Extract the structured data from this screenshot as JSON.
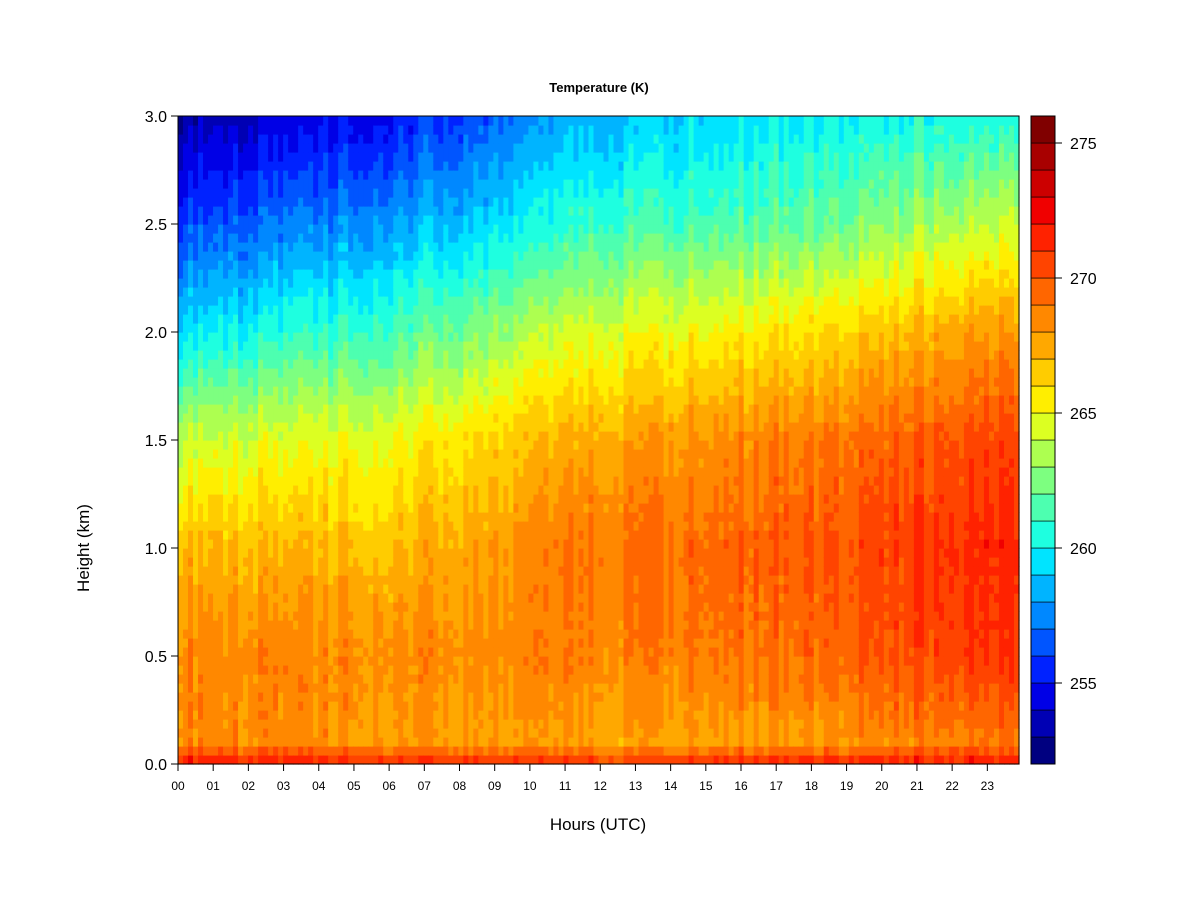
{
  "chart_data": {
    "type": "heatmap",
    "title": "Temperature (K)",
    "xlabel": "Hours (UTC)",
    "ylabel": "Height (km)",
    "x": {
      "ticks": [
        "00",
        "01",
        "02",
        "03",
        "04",
        "05",
        "06",
        "07",
        "08",
        "09",
        "10",
        "11",
        "12",
        "13",
        "14",
        "15",
        "16",
        "17",
        "18",
        "19",
        "20",
        "21",
        "22",
        "23"
      ],
      "range": [
        0,
        23.9
      ]
    },
    "y": {
      "ticks": [
        "0.0",
        "0.5",
        "1.0",
        "1.5",
        "2.0",
        "2.5",
        "3.0"
      ],
      "range": [
        0,
        3.0
      ]
    },
    "colorbar": {
      "ticks": [
        "255",
        "260",
        "265",
        "270",
        "275"
      ],
      "range": [
        252,
        276
      ],
      "levels": 24,
      "colors": [
        "#000080",
        "#0000b4",
        "#0000e6",
        "#0022ff",
        "#0055ff",
        "#0088ff",
        "#00b4ff",
        "#00e4ff",
        "#1effe0",
        "#4dffb0",
        "#7dff80",
        "#adff50",
        "#dcff22",
        "#ffee00",
        "#ffcc00",
        "#ffa800",
        "#ff8800",
        "#ff6600",
        "#ff4400",
        "#ff2200",
        "#f00000",
        "#cc0000",
        "#a80000",
        "#800000"
      ]
    },
    "profile_description": "temperature decreases with height; surface ~272 K, upper levels ~253-259 K; warmest lower layer late in day (hours 17-23)",
    "representative_profiles": [
      {
        "hour": 0,
        "heights": [
          0.0,
          0.1,
          0.5,
          1.0,
          1.5,
          2.0,
          2.5,
          3.0
        ],
        "values": [
          272,
          268.5,
          268.5,
          267,
          264,
          259.5,
          256,
          253
        ]
      },
      {
        "hour": 6,
        "heights": [
          0.0,
          0.1,
          0.5,
          1.0,
          1.5,
          2.0,
          2.5,
          3.0
        ],
        "values": [
          272,
          268,
          268.5,
          267,
          265,
          261.5,
          258,
          255
        ]
      },
      {
        "hour": 12,
        "heights": [
          0.0,
          0.1,
          0.5,
          1.0,
          1.5,
          2.0,
          2.5,
          3.0
        ],
        "values": [
          271,
          267.5,
          268.5,
          269,
          267.5,
          264.5,
          261,
          258.5
        ]
      },
      {
        "hour": 18,
        "heights": [
          0.0,
          0.1,
          0.5,
          1.0,
          1.5,
          2.0,
          2.5,
          3.0
        ],
        "values": [
          272,
          268,
          269.5,
          270,
          269,
          266,
          262,
          260
        ]
      },
      {
        "hour": 23,
        "heights": [
          0.0,
          0.1,
          0.5,
          1.0,
          1.5,
          2.0,
          2.5,
          3.0
        ],
        "values": [
          272,
          269,
          271,
          271.5,
          270.5,
          268,
          264,
          260.5
        ]
      }
    ]
  }
}
